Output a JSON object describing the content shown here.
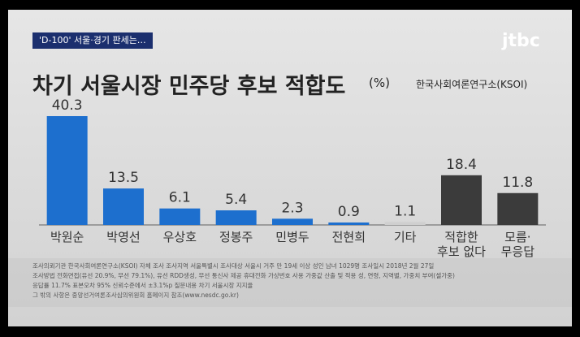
{
  "badge": "'D-100' 서울·경기 판세는…",
  "logo": "jtbc",
  "source": "한국사회여론연구소(KSOI)",
  "notes": [
    "조사의뢰기관 한국사회여론연구소(KSOI) 자체 조사  조사지역 서울특별시  조사대상 서울시 거주 만 19세 이상 성인 남녀 1029명  조사일시 2018년 2월 27일",
    "조사방법 전화면접(유선 20.9%, 무선 79.1%), 유선 RDD생성, 무선 통신사 제공 휴대전화 가상번호 사용  가중값 산출 및 적용 성, 연령, 지역별, 가중치 부여(셀가중)",
    "응답률 11.7%  표본오차 95% 신뢰수준에서 ±3.1%p  질문내용 차기 서울시장 지지율",
    "그 밖의 사항은 중앙선거여론조사심의위원회 홈페이지 참조(www.nesdc.go.kr)"
  ],
  "chart_data": {
    "type": "bar",
    "title": "차기 서울시장 민주당 후보 적합도",
    "unit": "(%)",
    "categories": [
      "박원순",
      "박영선",
      "우상호",
      "정봉주",
      "민병두",
      "전현희",
      "기타",
      "적합한\n후보 없다",
      "모름·\n무응답"
    ],
    "values": [
      40.3,
      13.5,
      6.1,
      5.4,
      2.3,
      0.9,
      1.1,
      18.4,
      11.8
    ],
    "colors": [
      "#1d6fce",
      "#1d6fce",
      "#1d6fce",
      "#1d6fce",
      "#1d6fce",
      "#1d6fce",
      "#cfcfcf",
      "#3b3b3b",
      "#3b3b3b"
    ]
  }
}
